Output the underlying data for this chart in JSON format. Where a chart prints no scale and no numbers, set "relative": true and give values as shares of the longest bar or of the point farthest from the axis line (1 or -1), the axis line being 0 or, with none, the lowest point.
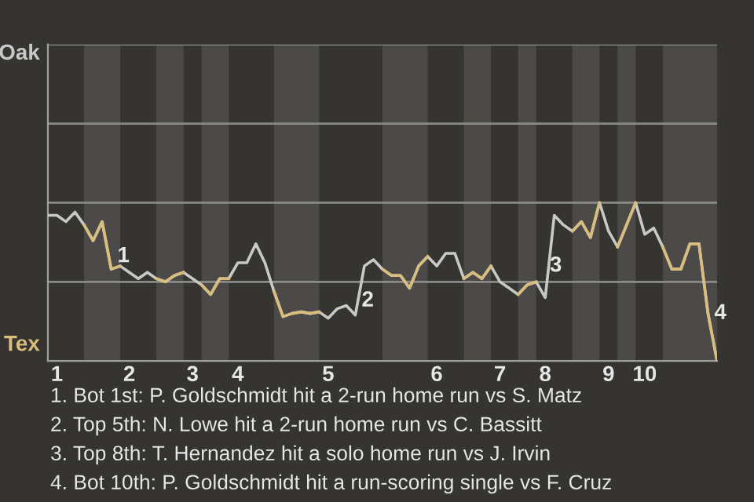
{
  "chart_data": {
    "type": "line",
    "relative": true,
    "categories": [
      null,
      "1",
      null,
      null,
      null,
      null,
      null,
      null,
      null,
      "2",
      null,
      null,
      null,
      null,
      null,
      null,
      "3",
      null,
      null,
      null,
      null,
      "4",
      null,
      null,
      null,
      null,
      null,
      null,
      null,
      null,
      null,
      "5",
      null,
      null,
      null,
      null,
      null,
      null,
      null,
      null,
      null,
      null,
      null,
      "6",
      null,
      null,
      null,
      null,
      null,
      null,
      "7",
      null,
      null,
      null,
      null,
      "8",
      null,
      null,
      null,
      null,
      null,
      null,
      "9",
      null,
      null,
      null,
      "10",
      null,
      null,
      null,
      null,
      null,
      null,
      null,
      null
    ],
    "series": [
      {
        "color": "#c8c8c8",
        "values": [
          0.92,
          0.92,
          0.88,
          0.94,
          0.86,
          0.76,
          0.88,
          0.58,
          0.6,
          0.56,
          0.52,
          0.56,
          0.52,
          0.5,
          0.54,
          0.56,
          0.52,
          0.48,
          0.42,
          0.52,
          0.52,
          0.62,
          0.62,
          0.74,
          0.62,
          0.44,
          0.28,
          0.3,
          0.31,
          0.3,
          0.31,
          0.27,
          0.33,
          0.35,
          0.29,
          0.6,
          0.64,
          0.58,
          0.54,
          0.54,
          0.46,
          0.6,
          0.66,
          0.6,
          0.68,
          0.68,
          0.52,
          0.56,
          0.52,
          0.6,
          0.5,
          0.46,
          0.42,
          0.48,
          0.5,
          0.4,
          0.92,
          0.86,
          0.82,
          0.88,
          0.78,
          1.0,
          0.82,
          0.72,
          0.86,
          1.0,
          0.8,
          0.84,
          0.72,
          0.58,
          0.58,
          0.74,
          0.74,
          0.3,
          0
        ]
      },
      {
        "color": "#d8bd7c",
        "values": [
          null,
          null,
          null,
          null,
          0.86,
          0.76,
          0.88,
          0.58,
          0.6,
          null,
          null,
          null,
          0.52,
          0.5,
          0.54,
          0.56,
          null,
          0.48,
          0.42,
          0.52,
          0.52,
          null,
          null,
          null,
          null,
          0.44,
          0.28,
          0.3,
          0.31,
          0.3,
          0.31,
          null,
          null,
          null,
          null,
          null,
          null,
          0.58,
          0.54,
          0.54,
          0.46,
          0.6,
          0.66,
          null,
          null,
          null,
          0.52,
          0.56,
          0.52,
          0.6,
          null,
          null,
          0.42,
          0.48,
          0.5,
          null,
          null,
          null,
          0.82,
          0.88,
          0.78,
          1.0,
          null,
          0.72,
          0.86,
          1.0,
          null,
          null,
          0.72,
          0.58,
          0.58,
          0.74,
          0.74,
          0.3,
          0
        ]
      }
    ],
    "ref_lines": [
      {
        "axis": "y",
        "value": 0.5,
        "color": "#8a8a88"
      },
      {
        "axis": "y",
        "value": 1,
        "color": "#8a8a88"
      },
      {
        "axis": "y",
        "value": 1.5,
        "color": "#8a8a88"
      },
      {
        "axis": "y",
        "value": 2,
        "color": "#8a8a88"
      }
    ],
    "legend": false,
    "marker": "none",
    "line_style": "solid",
    "annotations": [
      "Oak",
      "Tex",
      "1",
      "2",
      "3",
      "4",
      "1. Bot 1st: P. Goldschmidt hit a 2-run home run vs S. Matz",
      "2. Top 5th: N. Lowe hit a 2-run home run vs C. Bassitt",
      "3. Top 8th: T. Hernandez hit a solo home run vs J. Irvin",
      "4. Bot 10th: P. Goldschmidt hit a run-scoring single vs F. Cruz"
    ]
  }
}
